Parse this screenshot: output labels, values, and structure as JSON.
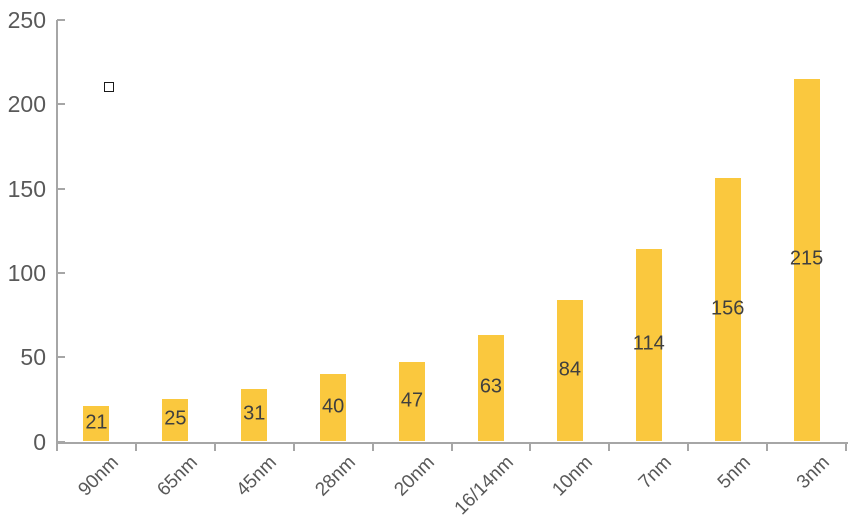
{
  "chart_data": {
    "type": "bar",
    "categories": [
      "90nm",
      "65nm",
      "45nm",
      "28nm",
      "20nm",
      "16/14nm",
      "10nm",
      "7nm",
      "5nm",
      "3nm"
    ],
    "values": [
      21,
      25,
      31,
      40,
      47,
      63,
      84,
      114,
      156,
      215
    ],
    "data_labels": [
      "21",
      "25",
      "31",
      "40",
      "47",
      "63",
      "84",
      "114",
      "156",
      "215"
    ],
    "title": "",
    "xlabel": "",
    "ylabel": "",
    "ylim": [
      0,
      250
    ],
    "yticks": [
      0,
      50,
      100,
      150,
      200,
      250
    ],
    "ytick_labels": [
      "0",
      "50",
      "100",
      "150",
      "200",
      "250"
    ],
    "grid": false,
    "legend": "none",
    "data_labels_position": "center",
    "colors": {
      "bar_fill": "#FAC83E",
      "data_label": "#3F3F3F",
      "axis_tick_label": "#595959",
      "axis_line": "#A6A6A6"
    }
  },
  "artifacts": {
    "stray_marker": {
      "shape": "hollow-square",
      "description": "small empty square glyph near top-left of plot area"
    }
  }
}
